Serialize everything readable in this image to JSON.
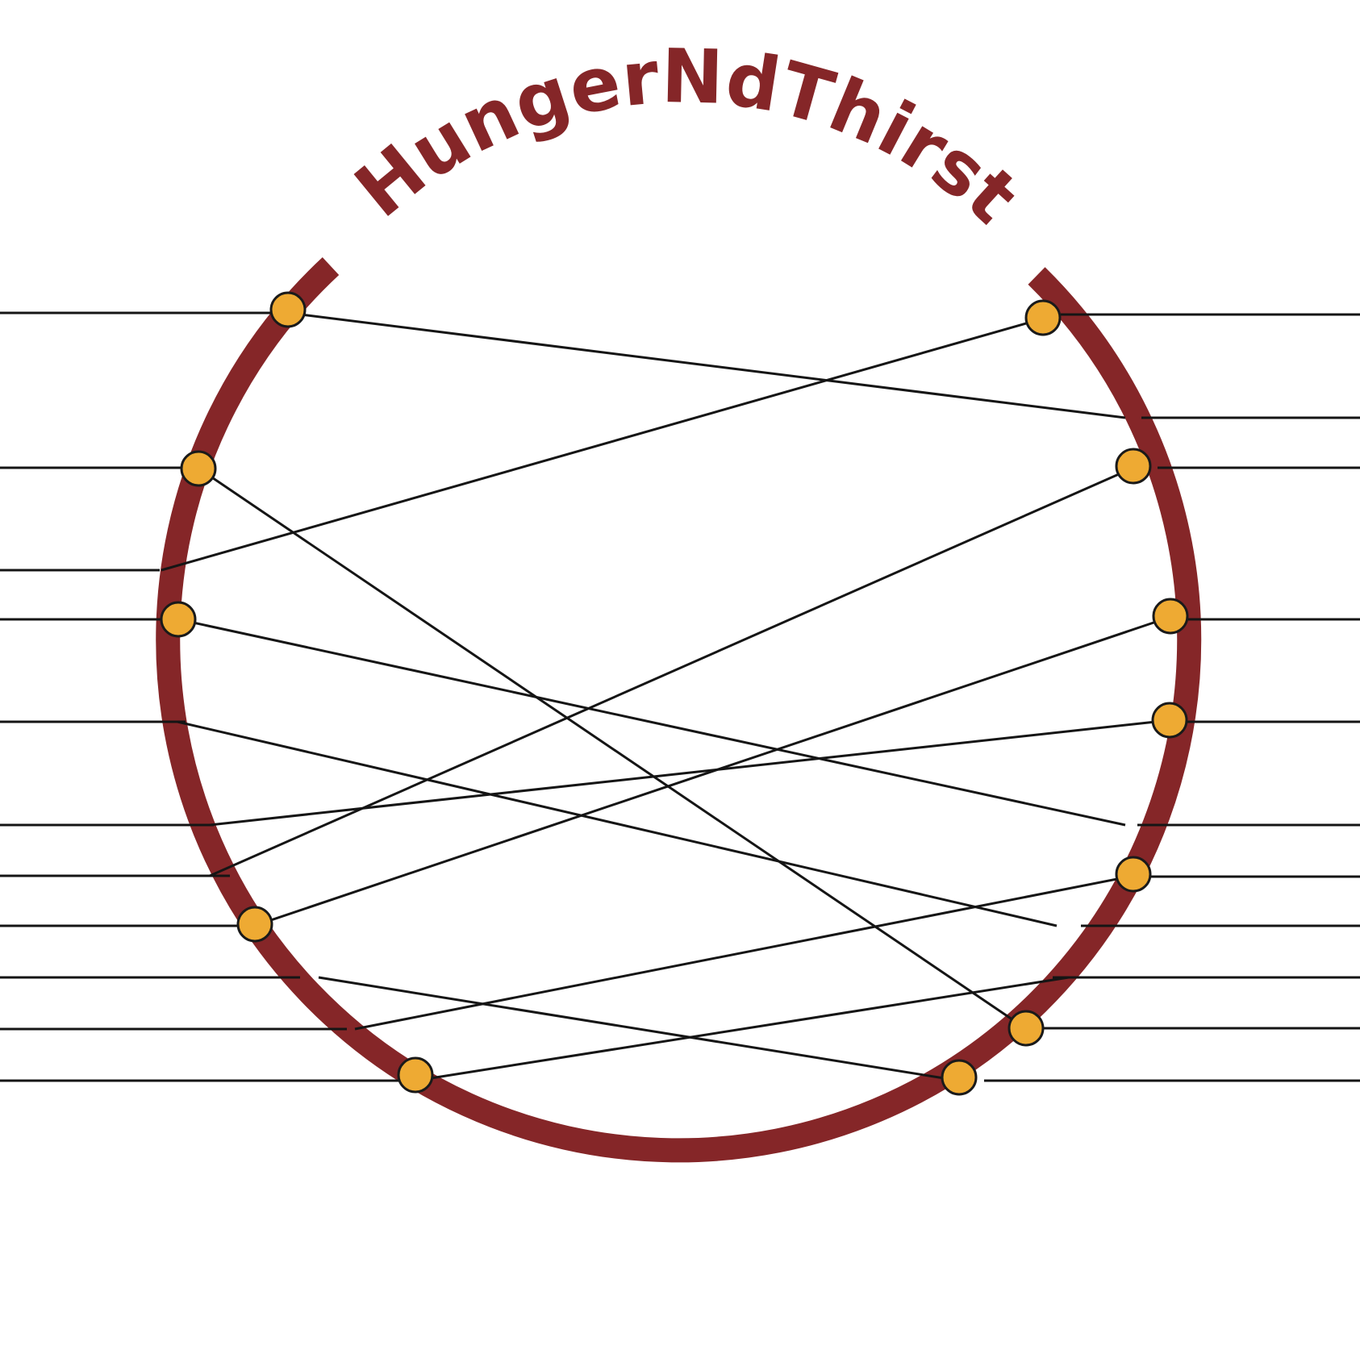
{
  "logo": {
    "brand_name": "HungerNdThirst",
    "colors": {
      "ring": "#852628",
      "text": "#852628",
      "node_fill": "#eeaa33",
      "node_stroke": "#1a1a1a",
      "line": "#151515",
      "background": "#ffffff"
    }
  }
}
